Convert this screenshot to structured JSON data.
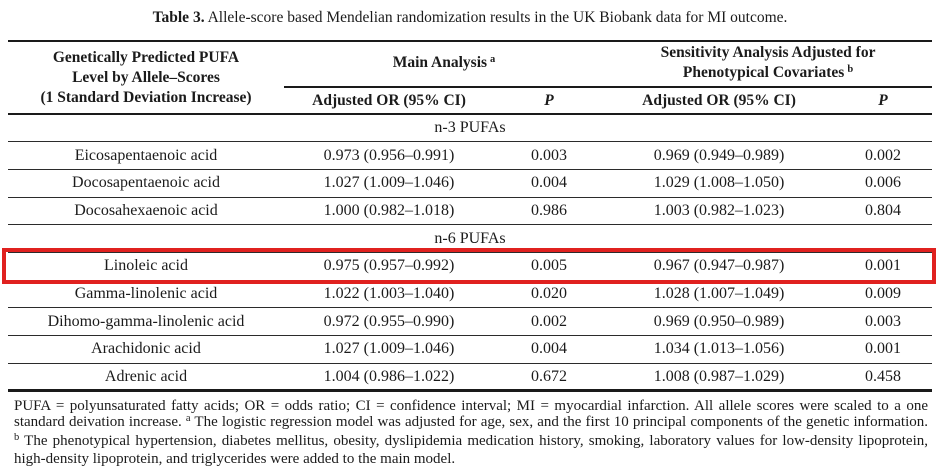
{
  "title": {
    "label": "Table 3.",
    "text": "Allele-score based Mendelian randomization results in the UK Biobank data for MI outcome."
  },
  "highlight": {
    "color": "#e0211f",
    "highlighted_row": "Linoleic acid"
  },
  "table": {
    "col1_header_lines": [
      "Genetically Predicted PUFA",
      "Level by Allele–Scores",
      "(1 Standard Deviation Increase)"
    ],
    "group_headers": {
      "main": {
        "label": "Main Analysis",
        "sup": "a"
      },
      "sensitivity": {
        "line1": "Sensitivity Analysis Adjusted for",
        "line2": "Phenotypical Covariates",
        "sup": "b"
      }
    },
    "sub_headers": {
      "or_main": "Adjusted OR (95% CI)",
      "p_main": "P",
      "or_sens": "Adjusted OR (95% CI)",
      "p_sens": "P"
    },
    "rows": [
      {
        "type": "section",
        "name": "n-3 PUFAs"
      },
      {
        "type": "data",
        "name": "Eicosapentaenoic acid",
        "or_main": "0.973 (0.956–0.991)",
        "p_main": "0.003",
        "or_sens": "0.969 (0.949–0.989)",
        "p_sens": "0.002"
      },
      {
        "type": "data",
        "name": "Docosapentaenoic acid",
        "or_main": "1.027 (1.009–1.046)",
        "p_main": "0.004",
        "or_sens": "1.029 (1.008–1.050)",
        "p_sens": "0.006"
      },
      {
        "type": "data",
        "name": "Docosahexaenoic acid",
        "or_main": "1.000 (0.982–1.018)",
        "p_main": "0.986",
        "or_sens": "1.003 (0.982–1.023)",
        "p_sens": "0.804"
      },
      {
        "type": "section",
        "name": "n-6 PUFAs"
      },
      {
        "type": "data",
        "name": "Linoleic acid",
        "or_main": "0.975 (0.957–0.992)",
        "p_main": "0.005",
        "or_sens": "0.967 (0.947–0.987)",
        "p_sens": "0.001"
      },
      {
        "type": "data",
        "name": "Gamma-linolenic acid",
        "or_main": "1.022 (1.003–1.040)",
        "p_main": "0.020",
        "or_sens": "1.028 (1.007–1.049)",
        "p_sens": "0.009"
      },
      {
        "type": "data",
        "name": "Dihomo-gamma-linolenic acid",
        "or_main": "0.972 (0.955–0.990)",
        "p_main": "0.002",
        "or_sens": "0.969 (0.950–0.989)",
        "p_sens": "0.003"
      },
      {
        "type": "data",
        "name": "Arachidonic acid",
        "or_main": "1.027 (1.009–1.046)",
        "p_main": "0.004",
        "or_sens": "1.034 (1.013–1.056)",
        "p_sens": "0.001"
      },
      {
        "type": "data",
        "name": "Adrenic acid",
        "or_main": "1.004 (0.986–1.022)",
        "p_main": "0.672",
        "or_sens": "1.008 (0.987–1.029)",
        "p_sens": "0.458"
      }
    ]
  },
  "footnote": {
    "part1": "PUFA = polyunsaturated fatty acids; OR = odds ratio; CI = confidence interval; MI = myocardial infarction. All allele scores were scaled to a one standard deivation increase.",
    "sup_a": "a",
    "part2": "The logistic regression model was adjusted for age, sex, and the first 10 principal components of the genetic information.",
    "sup_b": "b",
    "part3": "The phenotypical hypertension, diabetes mellitus, obesity, dyslipidemia medication history, smoking, laboratory values for low-density lipoprotein, high-density lipoprotein, and triglycerides were added to the main model."
  }
}
